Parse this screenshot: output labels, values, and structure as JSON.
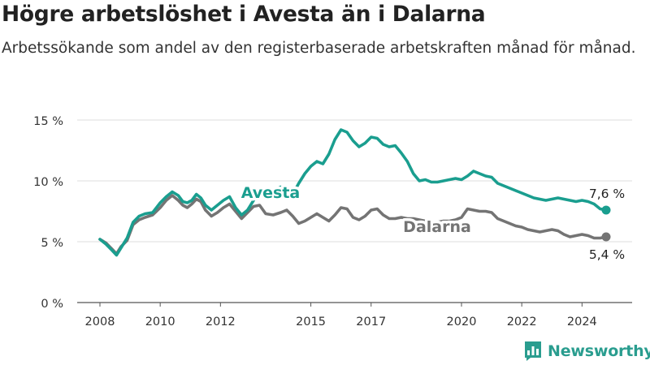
{
  "title": "Högre arbetslöshet i Avesta än i Dalarna",
  "subtitle": "Arbetssökande som andel av den registerbaserade arbetskraften månad för månad.",
  "brand": {
    "name": "Newsworthy",
    "icon": "bar-chart-icon",
    "color": "#2a9d8f"
  },
  "chart_data": {
    "type": "line",
    "title": "Högre arbetslöshet i Avesta än i Dalarna",
    "subtitle": "Arbetssökande som andel av den registerbaserade arbetskraften månad för månad.",
    "xlabel": "",
    "ylabel": "",
    "xlim": [
      2007.5,
      2025.5
    ],
    "ylim": [
      0,
      15
    ],
    "y_ticks": [
      0,
      5,
      10,
      15
    ],
    "y_tick_labels": [
      "0 %",
      "5 %",
      "10 %",
      "15 %"
    ],
    "x_ticks": [
      2008,
      2010,
      2012,
      2015,
      2017,
      2020,
      2022,
      2024
    ],
    "x_tick_labels": [
      "2008",
      "2010",
      "2012",
      "2015",
      "2017",
      "2020",
      "2022",
      "2024"
    ],
    "grid": true,
    "legend": "direct labels",
    "series": [
      {
        "name": "Avesta",
        "color": "#1a9e8f",
        "end_label": "7,6 %",
        "x": [
          2008.0,
          2008.2,
          2008.4,
          2008.55,
          2008.7,
          2008.9,
          2009.1,
          2009.3,
          2009.5,
          2009.75,
          2010.0,
          2010.2,
          2010.4,
          2010.6,
          2010.75,
          2010.9,
          2011.05,
          2011.2,
          2011.35,
          2011.5,
          2011.7,
          2011.9,
          2012.1,
          2012.3,
          2012.5,
          2012.7,
          2012.9,
          2013.1,
          2013.3,
          2013.5,
          2013.75,
          2014.0,
          2014.2,
          2014.4,
          2014.6,
          2014.8,
          2015.0,
          2015.2,
          2015.4,
          2015.6,
          2015.8,
          2016.0,
          2016.2,
          2016.4,
          2016.6,
          2016.8,
          2017.0,
          2017.2,
          2017.4,
          2017.6,
          2017.8,
          2018.0,
          2018.2,
          2018.4,
          2018.6,
          2018.8,
          2019.0,
          2019.2,
          2019.4,
          2019.6,
          2019.8,
          2020.0,
          2020.2,
          2020.4,
          2020.6,
          2020.8,
          2021.0,
          2021.2,
          2021.4,
          2021.6,
          2021.8,
          2022.0,
          2022.2,
          2022.4,
          2022.6,
          2022.8,
          2023.0,
          2023.2,
          2023.4,
          2023.6,
          2023.8,
          2024.0,
          2024.2,
          2024.4,
          2024.6,
          2024.8
        ],
        "values": [
          5.2,
          4.8,
          4.3,
          3.9,
          4.5,
          5.3,
          6.6,
          7.1,
          7.3,
          7.4,
          8.2,
          8.7,
          9.1,
          8.8,
          8.3,
          8.2,
          8.4,
          8.9,
          8.6,
          8.0,
          7.6,
          8.0,
          8.4,
          8.7,
          7.8,
          7.2,
          7.6,
          8.4,
          9.1,
          8.6,
          9.2,
          9.5,
          9.3,
          8.9,
          9.8,
          10.6,
          11.2,
          11.6,
          11.4,
          12.2,
          13.4,
          14.2,
          14.0,
          13.3,
          12.8,
          13.1,
          13.6,
          13.5,
          13.0,
          12.8,
          12.9,
          12.3,
          11.6,
          10.6,
          10.0,
          10.1,
          9.9,
          9.9,
          10.0,
          10.1,
          10.2,
          10.1,
          10.4,
          10.8,
          10.6,
          10.4,
          10.3,
          9.8,
          9.6,
          9.4,
          9.2,
          9.0,
          8.8,
          8.6,
          8.5,
          8.4,
          8.5,
          8.6,
          8.5,
          8.4,
          8.3,
          8.4,
          8.3,
          8.1,
          7.7,
          7.6
        ]
      },
      {
        "name": "Dalarna",
        "color": "#747474",
        "end_label": "5,4 %",
        "x": [
          2008.0,
          2008.2,
          2008.4,
          2008.55,
          2008.7,
          2008.9,
          2009.1,
          2009.3,
          2009.5,
          2009.75,
          2010.0,
          2010.2,
          2010.4,
          2010.6,
          2010.75,
          2010.9,
          2011.05,
          2011.2,
          2011.35,
          2011.5,
          2011.7,
          2011.9,
          2012.1,
          2012.3,
          2012.5,
          2012.7,
          2012.9,
          2013.1,
          2013.3,
          2013.5,
          2013.75,
          2014.0,
          2014.2,
          2014.4,
          2014.6,
          2014.8,
          2015.0,
          2015.2,
          2015.4,
          2015.6,
          2015.8,
          2016.0,
          2016.2,
          2016.4,
          2016.6,
          2016.8,
          2017.0,
          2017.2,
          2017.4,
          2017.6,
          2017.8,
          2018.0,
          2018.2,
          2018.4,
          2018.6,
          2018.8,
          2019.0,
          2019.2,
          2019.4,
          2019.6,
          2019.8,
          2020.0,
          2020.2,
          2020.4,
          2020.6,
          2020.8,
          2021.0,
          2021.2,
          2021.4,
          2021.6,
          2021.8,
          2022.0,
          2022.2,
          2022.4,
          2022.6,
          2022.8,
          2023.0,
          2023.2,
          2023.4,
          2023.6,
          2023.8,
          2024.0,
          2024.2,
          2024.4,
          2024.6,
          2024.8
        ],
        "values": [
          5.2,
          4.9,
          4.4,
          4.0,
          4.6,
          5.1,
          6.4,
          6.8,
          7.0,
          7.2,
          7.8,
          8.4,
          8.8,
          8.4,
          8.0,
          7.8,
          8.1,
          8.5,
          8.3,
          7.6,
          7.1,
          7.4,
          7.8,
          8.1,
          7.5,
          6.9,
          7.4,
          7.9,
          8.0,
          7.3,
          7.2,
          7.4,
          7.6,
          7.1,
          6.5,
          6.7,
          7.0,
          7.3,
          7.0,
          6.7,
          7.2,
          7.8,
          7.7,
          7.0,
          6.8,
          7.1,
          7.6,
          7.7,
          7.2,
          6.9,
          6.9,
          7.0,
          6.9,
          6.9,
          6.8,
          6.7,
          6.5,
          6.6,
          6.7,
          6.7,
          6.8,
          7.0,
          7.7,
          7.6,
          7.5,
          7.5,
          7.4,
          6.9,
          6.7,
          6.5,
          6.3,
          6.2,
          6.0,
          5.9,
          5.8,
          5.9,
          6.0,
          5.9,
          5.6,
          5.4,
          5.5,
          5.6,
          5.5,
          5.3,
          5.3,
          5.4
        ]
      }
    ]
  }
}
